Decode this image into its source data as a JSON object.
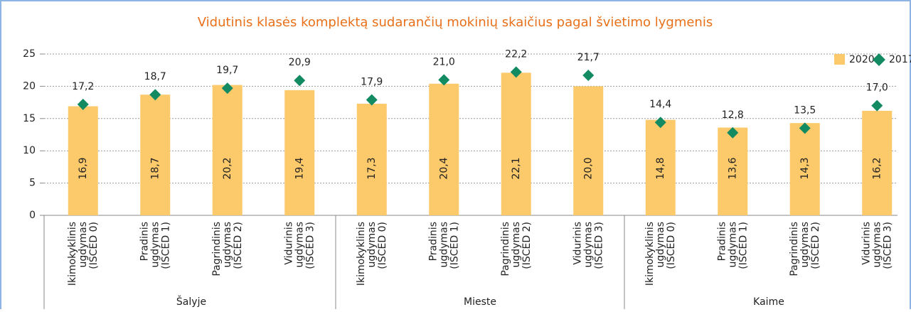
{
  "chart_data": {
    "type": "bar",
    "title": "Vidutinis klasės komplektą sudarančių mokinių skaičius pagal švietimo lygmenis",
    "categories": [
      [
        "Ikimokyklinis",
        "ugdymas",
        "(ISCED 0)"
      ],
      [
        "Pradinis",
        "ugdymas",
        "(ISCED 1)"
      ],
      [
        "Pagrindinis",
        "ugdymas",
        "(ISCED 2)"
      ],
      [
        "Vidurinis",
        "ugdymas",
        "(ISCED 3)"
      ],
      [
        "Ikimokyklinis",
        "ugdymas",
        "(ISCED 0)"
      ],
      [
        "Pradinis",
        "ugdymas",
        "(ISCED 1)"
      ],
      [
        "Pagrindinis",
        "ugdymas",
        "(ISCED 2)"
      ],
      [
        "Vidurinis",
        "ugdymas",
        "(ISCED 3)"
      ],
      [
        "Ikimokyklinis",
        "ugdymas",
        "(ISCED 0)"
      ],
      [
        "Pradinis",
        "ugdymas",
        "(ISCED 1)"
      ],
      [
        "Pagrindinis",
        "ugdymas",
        "(ISCED 2)"
      ],
      [
        "Vidurinis",
        "ugdymas",
        "(ISCED 3)"
      ]
    ],
    "groups": [
      "Šalyje",
      "Mieste",
      "Kaime"
    ],
    "series": [
      {
        "name": "2020",
        "color": "#fcc96b",
        "values": [
          16.9,
          18.7,
          20.2,
          19.4,
          17.3,
          20.4,
          22.1,
          20.0,
          14.8,
          13.6,
          14.3,
          16.2
        ],
        "value_labels": [
          "16,9",
          "18,7",
          "20,2",
          "19,4",
          "17,3",
          "20,4",
          "22,1",
          "20,0",
          "14,8",
          "13,6",
          "14,3",
          "16,2"
        ]
      },
      {
        "name": "2017",
        "color": "#128a62",
        "values": [
          17.2,
          18.7,
          19.7,
          20.9,
          17.9,
          21.0,
          22.2,
          21.7,
          14.4,
          12.8,
          13.5,
          17.0
        ],
        "value_labels": [
          "17,2",
          "18,7",
          "19,7",
          "20,9",
          "17,9",
          "21,0",
          "22,2",
          "21,7",
          "14,4",
          "12,8",
          "13,5",
          "17,0"
        ]
      }
    ],
    "ylim": [
      0,
      25
    ],
    "yticks": [
      0,
      5,
      10,
      15,
      20,
      25
    ],
    "grid": true,
    "legend": "top-right"
  }
}
